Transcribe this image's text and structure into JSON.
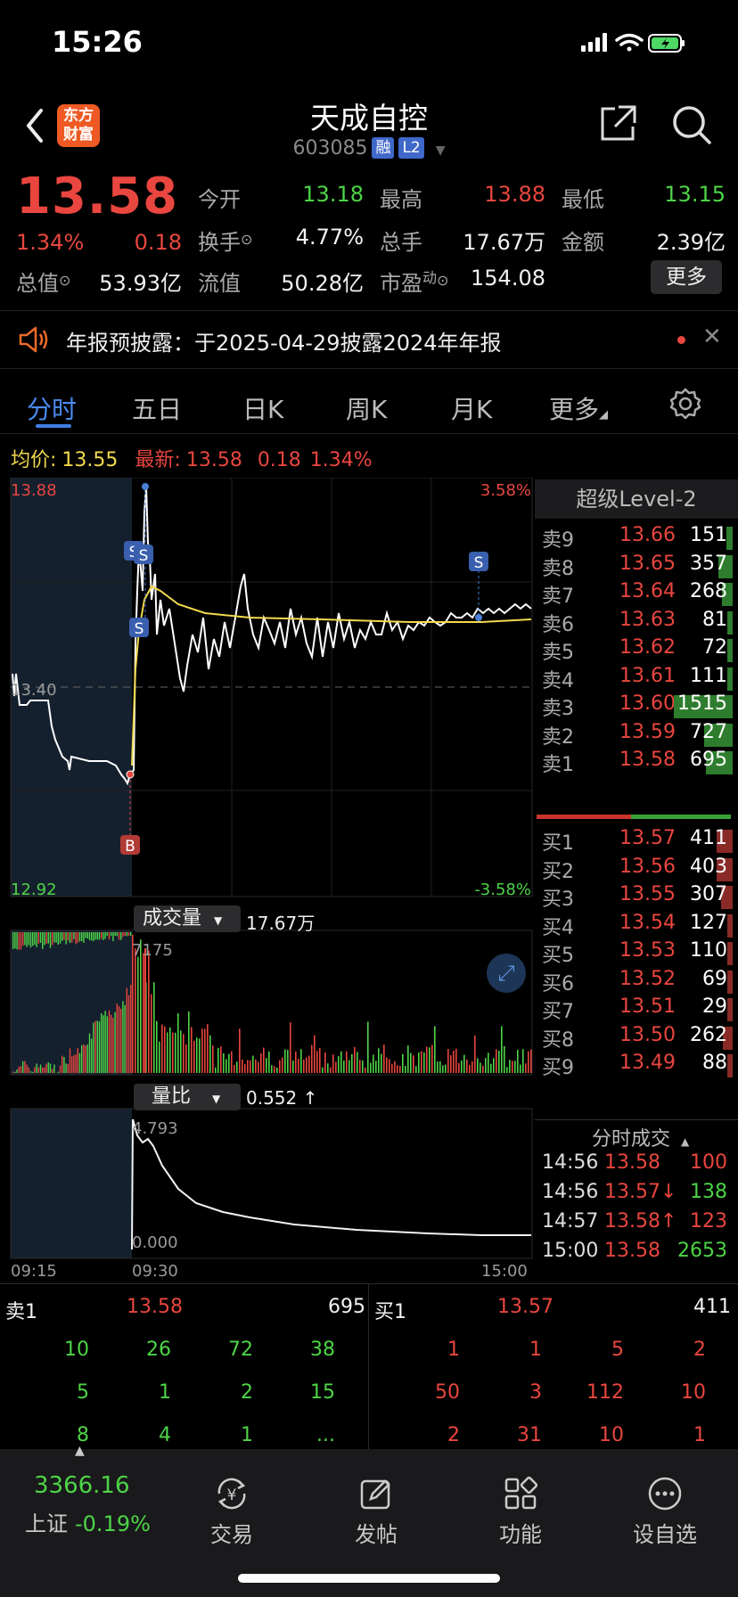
{
  "status_bar": {
    "time": "15:26"
  },
  "header": {
    "title": "天成自控",
    "code": "603085",
    "tag_margin": "融",
    "tag_level": "L2",
    "logo_line1": "东方",
    "logo_line2": "财富"
  },
  "quote": {
    "price": "13.58",
    "change_pct": "1.34%",
    "change": "0.18",
    "open_label": "今开",
    "open": "13.18",
    "high_label": "最高",
    "high": "13.88",
    "low_label": "最低",
    "low": "13.15",
    "turnover_label": "换手",
    "turnover": "4.77%",
    "volume_label": "总手",
    "volume": "17.67万",
    "amount_label": "金额",
    "amount": "2.39亿",
    "mktcap_label": "总值",
    "mktcap": "53.93亿",
    "float_label": "流值",
    "float": "50.28亿",
    "pe_label": "市盈",
    "pe_sup": "动",
    "pe": "154.08",
    "more_button": "更多"
  },
  "notice": {
    "text": "年报预披露：于2025-04-29披露2024年年报"
  },
  "tabs": [
    "分时",
    "五日",
    "日K",
    "周K",
    "月K",
    "更多"
  ],
  "avg_line": {
    "avg_label": "均价:",
    "avg": "13.55",
    "latest_label": "最新:",
    "latest": "13.58",
    "change": "0.18",
    "pct": "1.34%"
  },
  "chart": {
    "y_max": "13.88",
    "y_mid": "13.40",
    "y_min": "12.92",
    "pct_max": "3.58%",
    "pct_min": "-3.58%",
    "volume_dropdown": "成交量",
    "volume_total": "17.67万",
    "volume_max": "7175",
    "ratio_dropdown": "量比",
    "ratio_value": "0.552 ↑",
    "ratio_max": "4.793",
    "ratio_min": "0.000",
    "time_start": "09:15",
    "time_open": "09:30",
    "time_end": "15:00",
    "marker_s": "S",
    "marker_b": "B",
    "colors": {
      "up": "#e8463f",
      "down": "#4dd447",
      "price_line": "#ffffff",
      "avg_line": "#f2d94e"
    }
  },
  "depth": {
    "title": "超级Level-2",
    "asks": [
      {
        "label": "卖9",
        "price": "13.66",
        "vol": "151"
      },
      {
        "label": "卖8",
        "price": "13.65",
        "vol": "357"
      },
      {
        "label": "卖7",
        "price": "13.64",
        "vol": "268"
      },
      {
        "label": "卖6",
        "price": "13.63",
        "vol": "81"
      },
      {
        "label": "卖5",
        "price": "13.62",
        "vol": "72"
      },
      {
        "label": "卖4",
        "price": "13.61",
        "vol": "111"
      },
      {
        "label": "卖3",
        "price": "13.60",
        "vol": "1515"
      },
      {
        "label": "卖2",
        "price": "13.59",
        "vol": "727"
      },
      {
        "label": "卖1",
        "price": "13.58",
        "vol": "695"
      }
    ],
    "bids": [
      {
        "label": "买1",
        "price": "13.57",
        "vol": "411"
      },
      {
        "label": "买2",
        "price": "13.56",
        "vol": "403"
      },
      {
        "label": "买3",
        "price": "13.55",
        "vol": "307"
      },
      {
        "label": "买4",
        "price": "13.54",
        "vol": "127"
      },
      {
        "label": "买5",
        "price": "13.53",
        "vol": "110"
      },
      {
        "label": "买6",
        "price": "13.52",
        "vol": "69"
      },
      {
        "label": "买7",
        "price": "13.51",
        "vol": "29"
      },
      {
        "label": "买8",
        "price": "13.50",
        "vol": "262"
      },
      {
        "label": "买9",
        "price": "13.49",
        "vol": "88"
      }
    ],
    "trades_title": "分时成交",
    "trades": [
      {
        "time": "14:56",
        "price": "13.58",
        "vol": "100",
        "vol_color": "red"
      },
      {
        "time": "14:56",
        "price": "13.57↓",
        "vol": "138",
        "vol_color": "green"
      },
      {
        "time": "14:57",
        "price": "13.58↑",
        "vol": "123",
        "vol_color": "red"
      },
      {
        "time": "15:00",
        "price": "13.58",
        "vol": "2653",
        "vol_color": "green"
      }
    ]
  },
  "book": {
    "ask_label": "卖1",
    "ask_price": "13.58",
    "ask_vol": "695",
    "bid_label": "买1",
    "bid_price": "13.57",
    "bid_vol": "411",
    "ask_queue": [
      [
        "10",
        "26",
        "72",
        "38"
      ],
      [
        "5",
        "1",
        "2",
        "15"
      ],
      [
        "8",
        "4",
        "1",
        "..."
      ]
    ],
    "bid_queue": [
      [
        "1",
        "1",
        "5",
        "2"
      ],
      [
        "50",
        "3",
        "112",
        "10"
      ],
      [
        "2",
        "31",
        "10",
        "1"
      ]
    ]
  },
  "tabbar": {
    "index_value": "3366.16",
    "index_name": "上证",
    "index_change": "-0.19%",
    "items": [
      "交易",
      "发帖",
      "功能",
      "设自选"
    ]
  }
}
